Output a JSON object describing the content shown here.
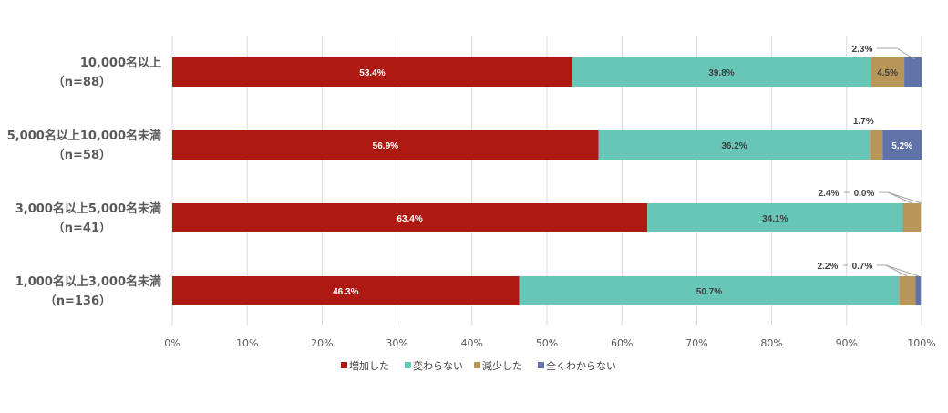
{
  "chart_data": {
    "type": "bar",
    "orientation": "horizontal",
    "stacked": true,
    "categories": [
      {
        "line1": "10,000名以上",
        "line2": "（n=88）"
      },
      {
        "line1": "5,000名以上10,000名未満",
        "line2": "（n=58）"
      },
      {
        "line1": "3,000名以上5,000名未満",
        "line2": "（n=41）"
      },
      {
        "line1": "1,000名以上3,000名未満",
        "line2": "（n=136）"
      }
    ],
    "series": [
      {
        "name": "増加した",
        "color": "#AE1A12",
        "values": [
          53.4,
          56.9,
          63.4,
          46.3
        ],
        "labels": [
          "53.4%",
          "56.9%",
          "63.4%",
          "46.3%"
        ]
      },
      {
        "name": "変わらない",
        "color": "#68C6B9",
        "values": [
          39.8,
          36.2,
          34.1,
          50.7
        ],
        "labels": [
          "39.8%",
          "36.2%",
          "34.1%",
          "50.7%"
        ]
      },
      {
        "name": "減少した",
        "color": "#B8965A",
        "values": [
          4.5,
          1.7,
          2.4,
          2.2
        ],
        "labels": [
          "4.5%",
          "1.7%",
          "2.4%",
          "2.2%"
        ]
      },
      {
        "name": "全くわからない",
        "color": "#5F73A8",
        "values": [
          2.3,
          5.2,
          0.0,
          0.7
        ],
        "labels": [
          "2.3%",
          "5.2%",
          "0.0%",
          "0.7%"
        ]
      }
    ],
    "x_ticks": [
      "0%",
      "10%",
      "20%",
      "30%",
      "40%",
      "50%",
      "60%",
      "70%",
      "80%",
      "90%",
      "100%"
    ],
    "xlim": [
      0,
      100
    ],
    "grid": true,
    "legend_position": "bottom"
  }
}
